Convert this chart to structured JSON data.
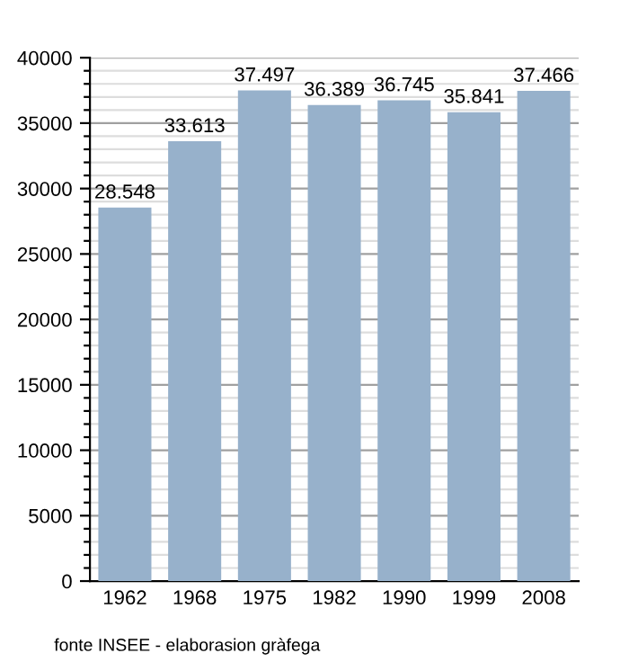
{
  "chart_data": {
    "type": "bar",
    "categories": [
      "1962",
      "1968",
      "1975",
      "1982",
      "1990",
      "1999",
      "2008"
    ],
    "values": [
      28548,
      33613,
      37497,
      36389,
      36745,
      35841,
      37466
    ],
    "value_labels": [
      "28.548",
      "33.613",
      "37.497",
      "36.389",
      "36.745",
      "35.841",
      "37.466"
    ],
    "color": "#97b1cb",
    "ylim": [
      0,
      40000
    ],
    "yticks": [
      0,
      {
        "value": 1000,
        "label": null
      },
      {
        "value": 2000,
        "label": null
      },
      {
        "value": 3000,
        "label": null
      },
      {
        "value": 4000,
        "label": null
      },
      5000,
      {
        "value": 6000,
        "label": null
      },
      {
        "value": 7000,
        "label": null
      },
      {
        "value": 8000,
        "label": null
      },
      {
        "value": 9000,
        "label": null
      },
      10000,
      {
        "value": 11000,
        "label": null
      },
      {
        "value": 12000,
        "label": null
      },
      {
        "value": 13000,
        "label": null
      },
      {
        "value": 14000,
        "label": null
      },
      15000,
      {
        "value": 16000,
        "label": null
      },
      {
        "value": 17000,
        "label": null
      },
      {
        "value": 18000,
        "label": null
      },
      {
        "value": 19000,
        "label": null
      },
      20000,
      {
        "value": 21000,
        "label": null
      },
      {
        "value": 22000,
        "label": null
      },
      {
        "value": 23000,
        "label": null
      },
      {
        "value": 24000,
        "label": null
      },
      25000,
      {
        "value": 26000,
        "label": null
      },
      {
        "value": 27000,
        "label": null
      },
      {
        "value": 28000,
        "label": null
      },
      {
        "value": 29000,
        "label": null
      },
      30000,
      {
        "value": 31000,
        "label": null
      },
      {
        "value": 32000,
        "label": null
      },
      {
        "value": 33000,
        "label": null
      },
      {
        "value": 34000,
        "label": null
      },
      35000,
      {
        "value": 36000,
        "label": null
      },
      {
        "value": 37000,
        "label": null
      },
      {
        "value": 38000,
        "label": null
      },
      {
        "value": 39000,
        "label": null
      },
      40000
    ],
    "grid": "y",
    "annotations": [
      "fonte INSEE - elaborasion gràfega"
    ]
  }
}
